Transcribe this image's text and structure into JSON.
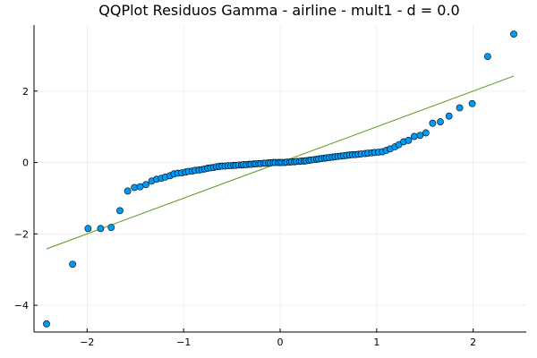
{
  "chart_data": {
    "type": "scatter",
    "title": "QQPlot Residuos Gamma - airline - mult1 - d = 0.0",
    "xlabel": "",
    "ylabel": "",
    "xlim": [
      -2.55,
      2.55
    ],
    "ylim": [
      -4.75,
      3.85
    ],
    "xticks": [
      -2,
      -1,
      0,
      1,
      2
    ],
    "xtick_labels": [
      "−2",
      "−1",
      "0",
      "1",
      "2"
    ],
    "yticks": [
      -4,
      -2,
      0,
      2
    ],
    "ytick_labels": [
      "−4",
      "−2",
      "0",
      "2"
    ],
    "grid": true,
    "legend": "none",
    "colors": {
      "points": "#009af9",
      "reference_line": "#6a9f32"
    },
    "reference_line": {
      "x": [
        -2.42,
        2.42
      ],
      "y": [
        -2.42,
        2.42
      ]
    },
    "points": {
      "x": [
        -2.42,
        -2.15,
        -1.99,
        -1.86,
        -1.75,
        -1.66,
        -1.58,
        -1.51,
        -1.45,
        -1.39,
        -1.33,
        -1.28,
        -1.23,
        -1.19,
        -1.14,
        -1.1,
        -1.06,
        -1.02,
        -0.98,
        -0.95,
        -0.91,
        -0.88,
        -0.84,
        -0.81,
        -0.78,
        -0.75,
        -0.72,
        -0.69,
        -0.66,
        -0.63,
        -0.6,
        -0.57,
        -0.54,
        -0.51,
        -0.48,
        -0.46,
        -0.43,
        -0.4,
        -0.38,
        -0.35,
        -0.32,
        -0.3,
        -0.27,
        -0.25,
        -0.22,
        -0.2,
        -0.17,
        -0.15,
        -0.12,
        -0.1,
        -0.07,
        -0.05,
        -0.02,
        0.0,
        0.02,
        0.05,
        0.07,
        0.1,
        0.12,
        0.15,
        0.17,
        0.2,
        0.22,
        0.25,
        0.27,
        0.3,
        0.32,
        0.35,
        0.38,
        0.4,
        0.43,
        0.46,
        0.48,
        0.51,
        0.54,
        0.57,
        0.6,
        0.63,
        0.66,
        0.69,
        0.72,
        0.75,
        0.78,
        0.81,
        0.84,
        0.88,
        0.91,
        0.95,
        0.98,
        1.02,
        1.06,
        1.1,
        1.14,
        1.19,
        1.23,
        1.28,
        1.33,
        1.39,
        1.45,
        1.51,
        1.58,
        1.66,
        1.75,
        1.86,
        1.99,
        2.15,
        2.42
      ],
      "y": [
        -4.52,
        -2.85,
        -1.85,
        -1.85,
        -1.82,
        -1.35,
        -0.8,
        -0.7,
        -0.68,
        -0.62,
        -0.52,
        -0.47,
        -0.44,
        -0.41,
        -0.37,
        -0.32,
        -0.3,
        -0.29,
        -0.27,
        -0.25,
        -0.24,
        -0.22,
        -0.21,
        -0.2,
        -0.18,
        -0.16,
        -0.15,
        -0.14,
        -0.12,
        -0.11,
        -0.1,
        -0.1,
        -0.09,
        -0.09,
        -0.08,
        -0.08,
        -0.07,
        -0.07,
        -0.06,
        -0.06,
        -0.05,
        -0.05,
        -0.04,
        -0.04,
        -0.03,
        -0.03,
        -0.02,
        -0.02,
        -0.01,
        -0.01,
        0.0,
        0.0,
        0.0,
        0.0,
        0.0,
        0.0,
        0.01,
        0.01,
        0.02,
        0.02,
        0.03,
        0.03,
        0.04,
        0.04,
        0.05,
        0.06,
        0.07,
        0.08,
        0.09,
        0.1,
        0.11,
        0.12,
        0.13,
        0.14,
        0.15,
        0.16,
        0.17,
        0.18,
        0.19,
        0.2,
        0.21,
        0.22,
        0.22,
        0.23,
        0.24,
        0.25,
        0.26,
        0.27,
        0.28,
        0.29,
        0.3,
        0.34,
        0.38,
        0.44,
        0.5,
        0.58,
        0.62,
        0.73,
        0.76,
        0.83,
        1.1,
        1.14,
        1.3,
        1.53,
        1.65,
        2.97,
        3.6
      ]
    }
  }
}
